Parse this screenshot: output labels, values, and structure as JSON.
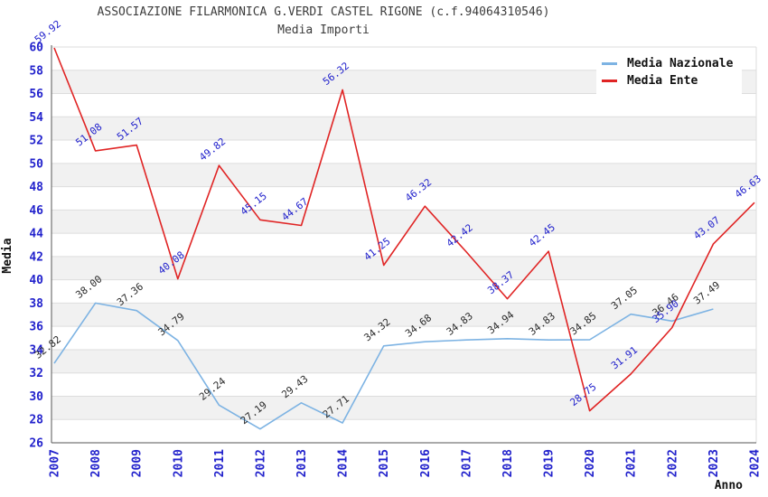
{
  "header": {
    "title": "ASSOCIAZIONE FILARMONICA G.VERDI CASTEL RIGONE (c.f.94064310546)",
    "subtitle": "Media Importi"
  },
  "legend": {
    "items": [
      {
        "label": "Media Nazionale",
        "color": "#7db3e3"
      },
      {
        "label": "Media Ente",
        "color": "#e02424"
      }
    ]
  },
  "chart_data": {
    "type": "line",
    "x": [
      2007,
      2008,
      2009,
      2010,
      2011,
      2012,
      2013,
      2014,
      2015,
      2016,
      2017,
      2018,
      2019,
      2020,
      2021,
      2022,
      2023,
      2024
    ],
    "series": [
      {
        "name": "Media Nazionale",
        "color": "#7db3e3",
        "label_color": "#2a2a2a",
        "values": [
          32.82,
          38.0,
          37.36,
          34.79,
          29.24,
          27.19,
          29.43,
          27.71,
          34.32,
          34.68,
          34.83,
          34.94,
          34.83,
          34.85,
          37.05,
          36.46,
          37.49,
          null
        ]
      },
      {
        "name": "Media Ente",
        "color": "#e02424",
        "label_color": "#2222cc",
        "values": [
          59.92,
          51.08,
          51.57,
          40.08,
          49.82,
          45.15,
          44.67,
          56.32,
          41.25,
          46.32,
          42.42,
          38.37,
          42.45,
          28.75,
          31.91,
          35.9,
          43.07,
          46.63
        ]
      }
    ],
    "xlabel": "Anno",
    "ylabel": "Media",
    "ylim": [
      26,
      60
    ],
    "ytick_step": 2,
    "tick_label_color": "#2222cc",
    "axis_title_color": "#111111",
    "band_color": "#f1f1f1",
    "grid_color": "#dddddd",
    "axis_color": "#555555",
    "legend_position": "top-right",
    "grid": "horizontal bands, alternating every 2 units"
  }
}
